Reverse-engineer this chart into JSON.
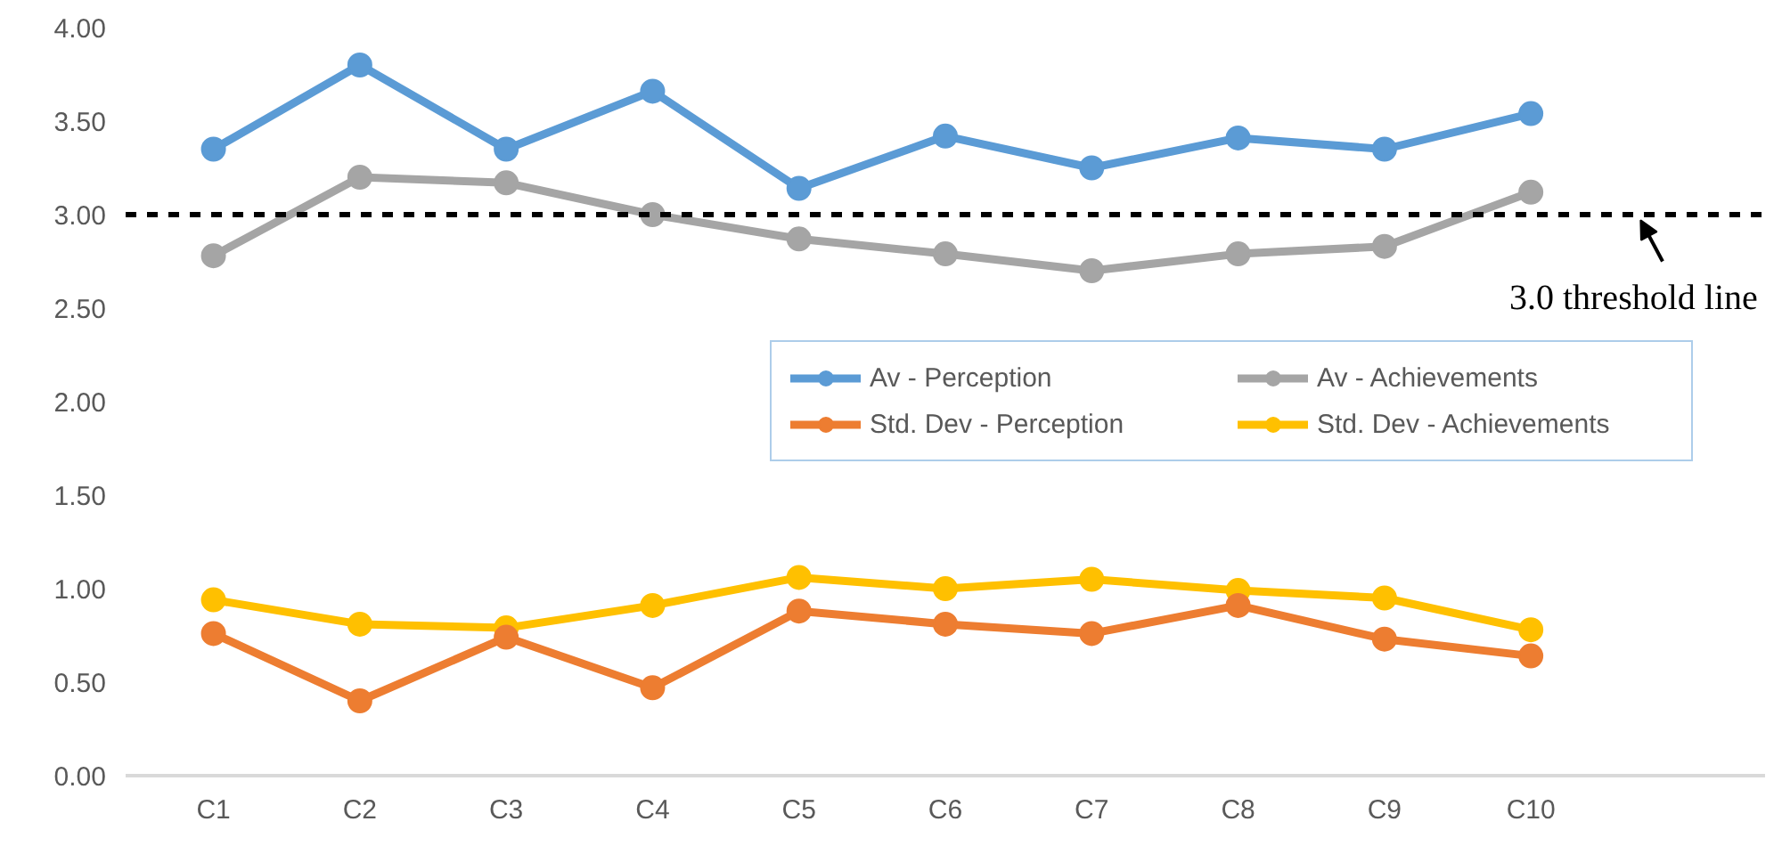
{
  "chart_data": {
    "type": "line",
    "categories": [
      "C1",
      "C2",
      "C3",
      "C4",
      "C5",
      "C6",
      "C7",
      "C8",
      "C9",
      "C10"
    ],
    "series": [
      {
        "name": "Av - Perception",
        "color": "#5b9bd5",
        "values": [
          3.35,
          3.8,
          3.35,
          3.66,
          3.14,
          3.42,
          3.25,
          3.41,
          3.35,
          3.54
        ]
      },
      {
        "name": "Std. Dev - Perception",
        "color": "#ed7d31",
        "values": [
          0.76,
          0.4,
          0.74,
          0.47,
          0.88,
          0.81,
          0.76,
          0.91,
          0.73,
          0.64
        ]
      },
      {
        "name": "Av - Achievements",
        "color": "#a5a5a5",
        "values": [
          2.78,
          3.2,
          3.17,
          3.0,
          2.87,
          2.79,
          2.7,
          2.79,
          2.83,
          3.12
        ]
      },
      {
        "name": "Std. Dev - Achievements",
        "color": "#ffc000",
        "values": [
          0.94,
          0.81,
          0.79,
          0.91,
          1.06,
          1.0,
          1.05,
          0.99,
          0.95,
          0.78
        ]
      }
    ],
    "ylim": [
      0,
      4
    ],
    "yticks": [
      {
        "value": 0,
        "label": "0.00"
      },
      {
        "value": 0.5,
        "label": "0.50"
      },
      {
        "value": 1,
        "label": "1.00"
      },
      {
        "value": 1.5,
        "label": "1.50"
      },
      {
        "value": 2,
        "label": "2.00"
      },
      {
        "value": 2.5,
        "label": "2.50"
      },
      {
        "value": 3,
        "label": "3.00"
      },
      {
        "value": 3.5,
        "label": "3.50"
      },
      {
        "value": 4,
        "label": "4.00"
      }
    ],
    "ref_lines": [
      {
        "axis": "y",
        "value": 3,
        "label": "3.0 threshold line",
        "color": "#000000",
        "line_style": "dashed"
      }
    ],
    "marker": "circle",
    "line_style": "solid",
    "grid": false,
    "legend": "right"
  }
}
